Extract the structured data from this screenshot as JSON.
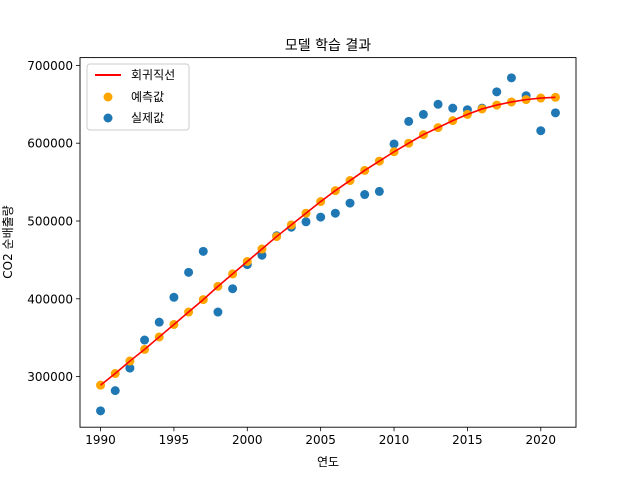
{
  "chart_data": {
    "type": "scatter",
    "title": "모델 학습 결과",
    "xlabel": "연도",
    "ylabel": "CO2 순배출량",
    "xlim": [
      1988.6,
      2022.4
    ],
    "ylim": [
      235000,
      710000
    ],
    "xticks": [
      1990,
      1995,
      2000,
      2005,
      2010,
      2015,
      2020
    ],
    "yticks": [
      300000,
      400000,
      500000,
      600000,
      700000
    ],
    "grid": false,
    "legend_position": "top-left",
    "x": [
      1990,
      1991,
      1992,
      1993,
      1994,
      1995,
      1996,
      1997,
      1998,
      1999,
      2000,
      2001,
      2002,
      2003,
      2004,
      2005,
      2006,
      2007,
      2008,
      2009,
      2010,
      2011,
      2012,
      2013,
      2014,
      2015,
      2016,
      2017,
      2018,
      2019,
      2020,
      2021
    ],
    "series": [
      {
        "name": "회귀직선",
        "kind": "line",
        "color": "#ff0000",
        "values": [
          289000,
          304000,
          320000,
          335000,
          351000,
          367000,
          383000,
          399000,
          416000,
          432000,
          448000,
          464000,
          480000,
          495000,
          510000,
          525000,
          539000,
          552000,
          565000,
          577000,
          589000,
          600000,
          611000,
          620000,
          629000,
          637000,
          644000,
          649000,
          653000,
          656000,
          658000,
          659000
        ]
      },
      {
        "name": "예측값",
        "kind": "scatter",
        "color": "#ffa500",
        "values": [
          289000,
          304000,
          320000,
          335000,
          351000,
          367000,
          383000,
          399000,
          416000,
          432000,
          448000,
          464000,
          480000,
          495000,
          510000,
          525000,
          539000,
          552000,
          565000,
          577000,
          589000,
          600000,
          611000,
          620000,
          629000,
          637000,
          644000,
          649000,
          653000,
          656000,
          658000,
          659000
        ]
      },
      {
        "name": "실제값",
        "kind": "scatter",
        "color": "#1f77b4",
        "values": [
          256000,
          282000,
          311000,
          347000,
          370000,
          402000,
          434000,
          461000,
          383000,
          413000,
          444000,
          456000,
          481000,
          492000,
          499000,
          505000,
          510000,
          523000,
          534000,
          538000,
          599000,
          628000,
          637000,
          650000,
          645000,
          643000,
          645000,
          666000,
          684000,
          661000,
          616000,
          639000
        ]
      }
    ]
  }
}
